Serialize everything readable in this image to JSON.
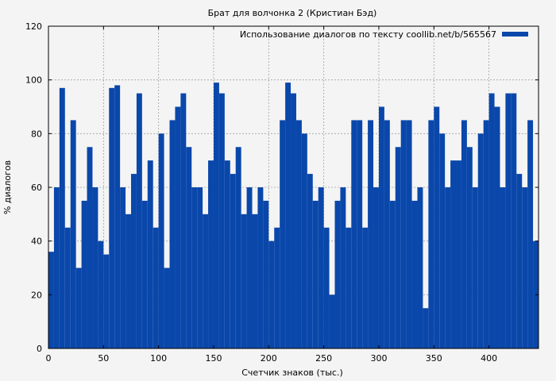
{
  "chart_data": {
    "type": "bar",
    "title": "Брат для волчонка 2 (Кристиан Бэд)",
    "xlabel": "Счетчик знаков (тыс.)",
    "ylabel": "% диалогов",
    "xlim": [
      0,
      445
    ],
    "ylim": [
      0,
      120
    ],
    "x_ticks": [
      0,
      50,
      100,
      150,
      200,
      250,
      300,
      350,
      400
    ],
    "y_ticks": [
      0,
      20,
      40,
      60,
      80,
      100,
      120
    ],
    "x_tick_labels": [
      "0",
      "50",
      "100",
      "150",
      "200",
      "250",
      "300",
      "350",
      "400"
    ],
    "y_tick_labels": [
      "0",
      "20",
      "40",
      "60",
      "80",
      "100",
      "120"
    ],
    "grid": true,
    "legend_position": "top-right",
    "series": [
      {
        "name": "Использование диалогов по тексту coollib.net/b/565567",
        "color": "#0a47aa",
        "x": [
          0,
          5,
          10,
          15,
          20,
          25,
          30,
          35,
          40,
          45,
          50,
          55,
          60,
          65,
          70,
          75,
          80,
          85,
          90,
          95,
          100,
          105,
          110,
          115,
          120,
          125,
          130,
          135,
          140,
          145,
          150,
          155,
          160,
          165,
          170,
          175,
          180,
          185,
          190,
          195,
          200,
          205,
          210,
          215,
          220,
          225,
          230,
          235,
          240,
          245,
          250,
          255,
          260,
          265,
          270,
          275,
          280,
          285,
          290,
          295,
          300,
          305,
          310,
          315,
          320,
          325,
          330,
          335,
          340,
          345,
          350,
          355,
          360,
          365,
          370,
          375,
          380,
          385,
          390,
          395,
          400,
          405,
          410,
          415,
          420,
          425,
          430,
          435,
          440
        ],
        "values": [
          36,
          60,
          97,
          45,
          85,
          30,
          55,
          75,
          60,
          40,
          35,
          97,
          98,
          60,
          50,
          65,
          95,
          55,
          70,
          45,
          80,
          30,
          85,
          90,
          95,
          75,
          60,
          60,
          50,
          70,
          99,
          95,
          70,
          65,
          75,
          50,
          60,
          50,
          60,
          55,
          40,
          45,
          85,
          99,
          95,
          85,
          80,
          65,
          55,
          60,
          45,
          20,
          55,
          60,
          45,
          85,
          85,
          45,
          85,
          60,
          90,
          85,
          55,
          75,
          85,
          85,
          55,
          60,
          15,
          85,
          90,
          80,
          60,
          70,
          70,
          85,
          75,
          60,
          80,
          85,
          95,
          90,
          60,
          95,
          95,
          65,
          60,
          85,
          40
        ]
      }
    ]
  }
}
